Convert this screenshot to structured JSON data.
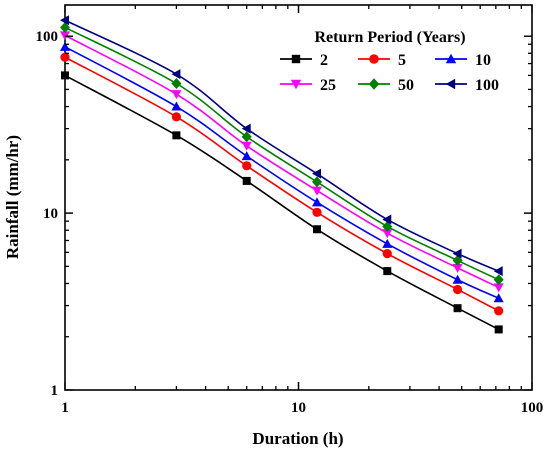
{
  "chart_data": {
    "type": "line",
    "title": "",
    "xlabel": "Duration (h)",
    "ylabel": "Rainfall (mm/hr)",
    "x_scale": "log",
    "y_scale": "log",
    "xlim": [
      1,
      100
    ],
    "ylim": [
      1,
      150
    ],
    "x_ticks": [
      1,
      10,
      100
    ],
    "x_tick_labels": [
      "1",
      "10",
      "100"
    ],
    "y_ticks": [
      1,
      10,
      100
    ],
    "y_tick_labels": [
      "1",
      "10",
      "100"
    ],
    "grid": false,
    "legend": {
      "title": "Return Period (Years)",
      "placement": "top-right",
      "columns": 3
    },
    "x": [
      1,
      3,
      6,
      12,
      24,
      48,
      72
    ],
    "series": [
      {
        "name": "2",
        "color": "#000000",
        "marker": "square",
        "values": [
          60,
          27.5,
          15.2,
          8.1,
          4.7,
          2.9,
          2.2
        ]
      },
      {
        "name": "5",
        "color": "#ff0000",
        "marker": "circle",
        "values": [
          76,
          35,
          18.5,
          10.1,
          5.9,
          3.7,
          2.8
        ]
      },
      {
        "name": "10",
        "color": "#0000ff",
        "marker": "triangle-up",
        "values": [
          87,
          40,
          21,
          11.5,
          6.7,
          4.2,
          3.3
        ]
      },
      {
        "name": "25",
        "color": "#ff00ff",
        "marker": "triangle-down",
        "values": [
          101,
          47,
          24,
          13.4,
          7.7,
          4.9,
          3.8
        ]
      },
      {
        "name": "50",
        "color": "#008000",
        "marker": "diamond",
        "values": [
          112,
          54,
          27,
          15,
          8.4,
          5.4,
          4.2
        ]
      },
      {
        "name": "100",
        "color": "#000080",
        "marker": "triangle-left",
        "values": [
          123,
          61,
          30,
          16.7,
          9.2,
          5.9,
          4.7
        ]
      }
    ]
  }
}
